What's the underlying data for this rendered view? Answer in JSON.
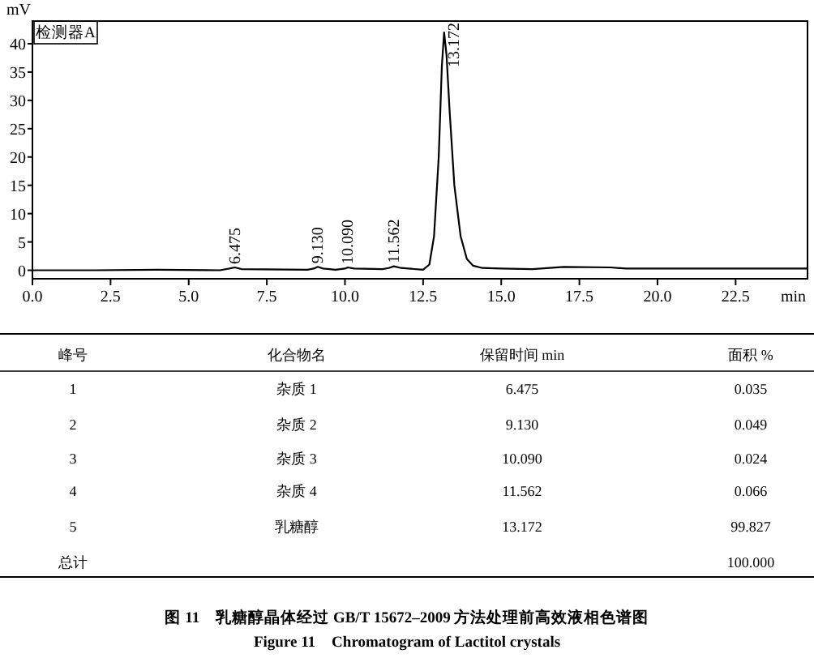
{
  "chart_data": {
    "type": "line",
    "ylabel": "mV",
    "xlabel": "min",
    "x": [
      0,
      2,
      4,
      6.0,
      6.3,
      6.475,
      6.7,
      8.8,
      9.0,
      9.13,
      9.3,
      9.7,
      10.0,
      10.09,
      10.3,
      11.2,
      11.4,
      11.562,
      11.8,
      12.5,
      12.7,
      12.85,
      13.0,
      13.1,
      13.172,
      13.25,
      13.35,
      13.5,
      13.7,
      13.9,
      14.1,
      14.4,
      15,
      16,
      17,
      18.5,
      19,
      21,
      24.8
    ],
    "series": [
      {
        "color": "#000000",
        "values": [
          0,
          0,
          0.1,
          0,
          0.3,
          0.5,
          0.2,
          0.1,
          0.3,
          0.6,
          0.3,
          0.1,
          0.3,
          0.5,
          0.3,
          0.2,
          0.4,
          0.7,
          0.4,
          0.1,
          1,
          6,
          20,
          36,
          42,
          38,
          28,
          15,
          6,
          2,
          0.8,
          0.4,
          0.3,
          0.2,
          0.6,
          0.5,
          0.3,
          0.3,
          0.3
        ]
      }
    ],
    "xlim": [
      0,
      24.8
    ],
    "ylim": [
      -1.5,
      44
    ],
    "xticks": [
      {
        "value": 0,
        "label": "0.0"
      },
      2.5,
      {
        "value": 5,
        "label": "5.0"
      },
      7.5,
      {
        "value": 10,
        "label": "10.0"
      },
      12.5,
      {
        "value": 15,
        "label": "15.0"
      },
      17.5,
      {
        "value": 20,
        "label": "20.0"
      },
      22.5
    ],
    "yticks": [
      0,
      5,
      10,
      15,
      20,
      25,
      30,
      35,
      40
    ],
    "grid": false,
    "marker": "none",
    "line_style": "solid",
    "annotations": [
      "检测器A",
      {
        "text": "6.475",
        "x": 6.475,
        "y": 0.5
      },
      {
        "text": "9.130",
        "x": 9.13,
        "y": 0.6
      },
      {
        "text": "10.090",
        "x": 10.09,
        "y": 0.5
      },
      {
        "text": "11.562",
        "x": 11.562,
        "y": 0.7
      },
      {
        "text": "13.172",
        "x": 13.172,
        "y": 42
      },
      "峰号",
      "化合物名",
      "保留时间 min",
      "面积 %",
      "1",
      "杂质 1",
      "6.475",
      "0.035",
      "2",
      "杂质 2",
      "9.130",
      "0.049",
      "3",
      "杂质 3",
      "10.090",
      "0.024",
      "4",
      "杂质 4",
      "11.562",
      "0.066",
      "5",
      "乳糖醇",
      "13.172",
      "99.827",
      "总计",
      "100.000",
      "图 11　乳糖醇晶体经过 GB/T 15672–2009 方法处理前高效液相色谱图",
      "Figure 11　Chromatogram of Lactitol crystals"
    ]
  }
}
